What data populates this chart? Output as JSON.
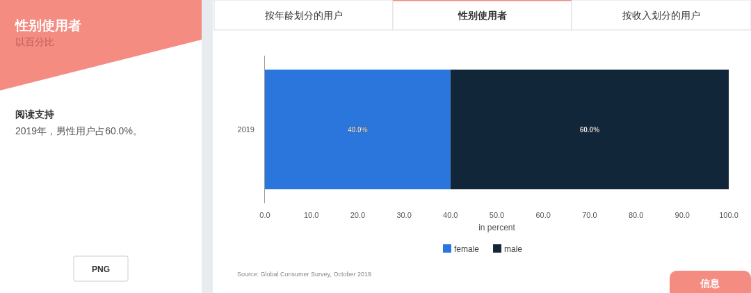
{
  "chart_data": {
    "type": "bar",
    "orientation": "horizontal",
    "stacked": true,
    "title": "性别使用者",
    "subtitle": "以百分比",
    "categories": [
      "2019"
    ],
    "series": [
      {
        "name": "female",
        "color": "#2a76dd",
        "values": [
          40.0
        ],
        "value_labels": [
          "40.0%"
        ]
      },
      {
        "name": "male",
        "color": "#12263a",
        "values": [
          60.0
        ],
        "value_labels": [
          "60.0%"
        ]
      }
    ],
    "xlim": [
      0,
      100
    ],
    "xticks": [
      {
        "value": 0,
        "label": "0.0"
      },
      {
        "value": 10,
        "label": "10.0"
      },
      {
        "value": 20,
        "label": "20.0"
      },
      {
        "value": 30,
        "label": "30.0"
      },
      {
        "value": 40,
        "label": "40.0"
      },
      {
        "value": 50,
        "label": "50.0"
      },
      {
        "value": 60,
        "label": "60.0"
      },
      {
        "value": 70,
        "label": "70.0"
      },
      {
        "value": 80,
        "label": "80.0"
      },
      {
        "value": 90,
        "label": "90.0"
      },
      {
        "value": 100,
        "label": "100.0"
      }
    ],
    "xlabel": "in percent",
    "legend": "bottom",
    "annotations": [
      "阅读支持",
      "2019年，男性用户占60.0%。",
      "按年龄划分的用户",
      "性别使用者",
      "按收入划分的用户",
      "PNG",
      "信息",
      "Source: Global Consumer Survey, October 2019"
    ]
  }
}
